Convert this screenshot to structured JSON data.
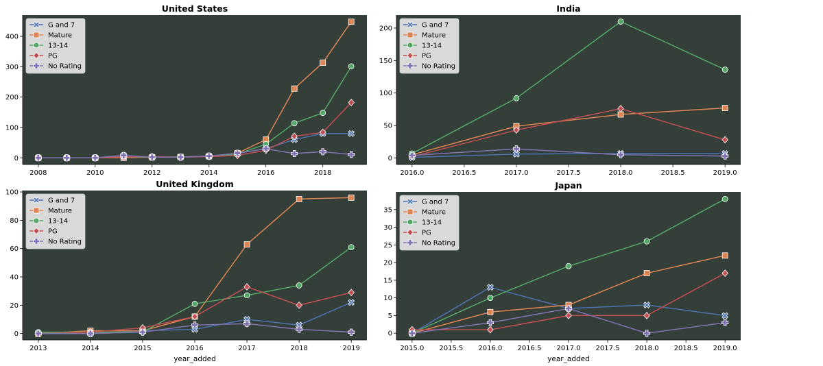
{
  "colors": {
    "panel_bg": "#353f3a",
    "series": [
      "#4c72b0",
      "#dd8452",
      "#55a868",
      "#c44e52",
      "#8172b3"
    ],
    "legend_bg": "#d9d9d9"
  },
  "chart_data": [
    {
      "type": "line",
      "title": "United States",
      "xlabel": "",
      "ylabel": "",
      "x": [
        2008,
        2009,
        2010,
        2011,
        2012,
        2013,
        2014,
        2015,
        2016,
        2017,
        2018,
        2019
      ],
      "xticks": [
        "2008",
        "2010",
        "2012",
        "2014",
        "2016",
        "2018"
      ],
      "xtick_values": [
        2008,
        2010,
        2012,
        2014,
        2016,
        2018
      ],
      "yticks": [
        "0",
        "100",
        "200",
        "300",
        "400"
      ],
      "ytick_values": [
        0,
        100,
        200,
        300,
        400
      ],
      "xlim": [
        2007.45,
        2019.55
      ],
      "ylim": [
        -22,
        470
      ],
      "legend_position": "upper-left",
      "grid": false,
      "series": [
        {
          "name": "G and 7",
          "marker": "x",
          "values": [
            0,
            0,
            0,
            8,
            2,
            2,
            5,
            15,
            30,
            60,
            80,
            80
          ]
        },
        {
          "name": "Mature",
          "marker": "square",
          "values": [
            0,
            0,
            0,
            0,
            2,
            3,
            5,
            15,
            60,
            228,
            313,
            448
          ]
        },
        {
          "name": "13-14",
          "marker": "circle",
          "values": [
            0,
            0,
            0,
            3,
            2,
            3,
            4,
            12,
            45,
            114,
            148,
            301
          ]
        },
        {
          "name": "PG",
          "marker": "diamond",
          "values": [
            0,
            0,
            0,
            3,
            4,
            2,
            4,
            8,
            25,
            71,
            84,
            182
          ]
        },
        {
          "name": "No Rating",
          "marker": "plus",
          "values": [
            0,
            0,
            0,
            8,
            2,
            2,
            6,
            15,
            30,
            14,
            20,
            11
          ]
        }
      ]
    },
    {
      "type": "line",
      "title": "India",
      "xlabel": "",
      "ylabel": "",
      "x": [
        2016,
        2017,
        2018,
        2019
      ],
      "xticks": [
        "2016.0",
        "2016.5",
        "2017.0",
        "2017.5",
        "2018.0",
        "2018.5",
        "2019.0"
      ],
      "xtick_values": [
        2016.0,
        2016.5,
        2017.0,
        2017.5,
        2018.0,
        2018.5,
        2019.0
      ],
      "yticks": [
        "0",
        "50",
        "100",
        "150",
        "200"
      ],
      "ytick_values": [
        0,
        50,
        100,
        150,
        200
      ],
      "xlim": [
        2015.85,
        2019.15
      ],
      "ylim": [
        -10,
        220
      ],
      "legend_position": "upper-left",
      "grid": false,
      "series": [
        {
          "name": "G and 7",
          "marker": "x",
          "values": [
            1,
            6,
            7,
            7
          ]
        },
        {
          "name": "Mature",
          "marker": "square",
          "values": [
            5,
            49,
            67,
            77
          ]
        },
        {
          "name": "13-14",
          "marker": "circle",
          "values": [
            7,
            92,
            210,
            136
          ]
        },
        {
          "name": "PG",
          "marker": "diamond",
          "values": [
            2,
            43,
            76,
            28
          ]
        },
        {
          "name": "No Rating",
          "marker": "plus",
          "values": [
            4,
            14,
            5,
            3
          ]
        }
      ]
    },
    {
      "type": "line",
      "title": "United Kingdom",
      "xlabel": "year_added",
      "ylabel": "",
      "x": [
        2013,
        2014,
        2015,
        2016,
        2017,
        2018,
        2019
      ],
      "xticks": [
        "2013",
        "2014",
        "2015",
        "2016",
        "2017",
        "2018",
        "2019"
      ],
      "xtick_values": [
        2013,
        2014,
        2015,
        2016,
        2017,
        2018,
        2019
      ],
      "yticks": [
        "0",
        "20",
        "40",
        "60",
        "80",
        "100"
      ],
      "ytick_values": [
        0,
        20,
        40,
        60,
        80,
        100
      ],
      "xlim": [
        2012.7,
        2019.3
      ],
      "ylim": [
        -4.5,
        101
      ],
      "legend_position": "upper-left",
      "grid": false,
      "series": [
        {
          "name": "G and 7",
          "marker": "x",
          "values": [
            0,
            0,
            2,
            3,
            10,
            6,
            22
          ]
        },
        {
          "name": "Mature",
          "marker": "square",
          "values": [
            0,
            2,
            2,
            12,
            63,
            95,
            96
          ]
        },
        {
          "name": "13-14",
          "marker": "circle",
          "values": [
            1,
            1,
            1,
            21,
            27,
            34,
            61
          ]
        },
        {
          "name": "PG",
          "marker": "diamond",
          "values": [
            0,
            1,
            4,
            12,
            33,
            20,
            29
          ]
        },
        {
          "name": "No Rating",
          "marker": "plus",
          "values": [
            0,
            0,
            1,
            6,
            7,
            3,
            1
          ]
        }
      ]
    },
    {
      "type": "line",
      "title": "Japan",
      "xlabel": "year_added",
      "ylabel": "",
      "x": [
        2015,
        2016,
        2017,
        2018,
        2019
      ],
      "xticks": [
        "2015.0",
        "2015.5",
        "2016.0",
        "2016.5",
        "2017.0",
        "2017.5",
        "2018.0",
        "2018.5",
        "2019.0"
      ],
      "xtick_values": [
        2015.0,
        2015.5,
        2016.0,
        2016.5,
        2017.0,
        2017.5,
        2018.0,
        2018.5,
        2019.0
      ],
      "yticks": [
        "0",
        "5",
        "10",
        "15",
        "20",
        "25",
        "30",
        "35"
      ],
      "ytick_values": [
        0,
        5,
        10,
        15,
        20,
        25,
        30,
        35
      ],
      "xlim": [
        2014.8,
        2019.2
      ],
      "ylim": [
        -1.9,
        40
      ],
      "legend_position": "upper-left",
      "grid": false,
      "series": [
        {
          "name": "G and 7",
          "marker": "x",
          "values": [
            0,
            13,
            7,
            8,
            5
          ]
        },
        {
          "name": "Mature",
          "marker": "square",
          "values": [
            0,
            6,
            8,
            17,
            22
          ]
        },
        {
          "name": "13-14",
          "marker": "circle",
          "values": [
            0,
            10,
            19,
            26,
            38
          ]
        },
        {
          "name": "PG",
          "marker": "diamond",
          "values": [
            1,
            1,
            5,
            5,
            17
          ]
        },
        {
          "name": "No Rating",
          "marker": "plus",
          "values": [
            0,
            3,
            7,
            0,
            3
          ]
        }
      ]
    }
  ]
}
